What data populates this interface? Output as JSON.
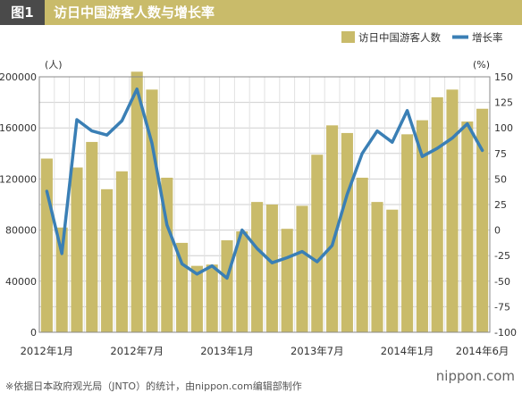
{
  "header": {
    "figure_label": "图1",
    "title": "访日中国游客人数与增长率"
  },
  "footer": {
    "source": "※依据日本政府观光局（JNTO）的统计，由nippon.com编辑部制作",
    "brand": "nippon.com"
  },
  "chart_data": {
    "type": "bar+line",
    "legend_position": "top-right",
    "grid": true,
    "left_axis": {
      "unit": "(人)",
      "min": 0,
      "max": 200000,
      "ticks": [
        "0",
        "40000",
        "80000",
        "120000",
        "160000",
        "200000"
      ]
    },
    "right_axis": {
      "unit": "(%)",
      "min": -100,
      "max": 150,
      "ticks": [
        "-100",
        "-75",
        "-50",
        "-25",
        "0",
        "25",
        "50",
        "75",
        "100",
        "125",
        "150"
      ]
    },
    "x_labels": [
      {
        "label": "2012年1月",
        "index": 0
      },
      {
        "label": "2012年7月",
        "index": 6
      },
      {
        "label": "2013年1月",
        "index": 12
      },
      {
        "label": "2013年7月",
        "index": 18
      },
      {
        "label": "2014年1月",
        "index": 24
      },
      {
        "label": "2014年6月",
        "index": 29
      }
    ],
    "series": [
      {
        "name": "访日中国游客人数",
        "type": "bar",
        "color": "#c9bb6a",
        "axis": "left",
        "values": [
          136000,
          82000,
          129000,
          149000,
          112000,
          126000,
          204000,
          190000,
          121000,
          70000,
          52000,
          53000,
          72000,
          79000,
          102000,
          100000,
          81000,
          99000,
          139000,
          162000,
          156000,
          121000,
          102000,
          96000,
          155000,
          166000,
          184000,
          190000,
          165000,
          175000
        ]
      },
      {
        "name": "增长率",
        "type": "line",
        "color": "#3a7fb5",
        "axis": "right",
        "values": [
          38,
          -23,
          108,
          97,
          93,
          107,
          138,
          85,
          5,
          -33,
          -43,
          -35,
          -47,
          0,
          -18,
          -32,
          -27,
          -21,
          -31,
          -15,
          35,
          75,
          97,
          86,
          117,
          72,
          80,
          90,
          104,
          78
        ]
      }
    ]
  }
}
